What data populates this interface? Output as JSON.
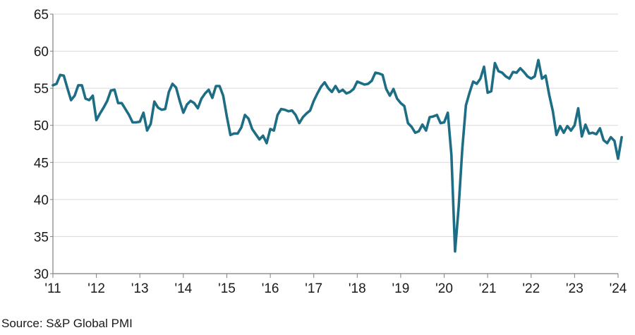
{
  "chart_data": {
    "type": "line",
    "title": "",
    "xlabel": "",
    "ylabel": "",
    "ylim": [
      30,
      65
    ],
    "xlim": [
      "2011-01",
      "2024-01"
    ],
    "y_ticks": [
      "30",
      "35",
      "40",
      "45",
      "50",
      "55",
      "60",
      "65"
    ],
    "x_ticks": [
      {
        "label": "'11",
        "date": "2011-01"
      },
      {
        "label": "'12",
        "date": "2012-01"
      },
      {
        "label": "'13",
        "date": "2013-01"
      },
      {
        "label": "'14",
        "date": "2014-01"
      },
      {
        "label": "'15",
        "date": "2015-01"
      },
      {
        "label": "'16",
        "date": "2016-01"
      },
      {
        "label": "'17",
        "date": "2017-01"
      },
      {
        "label": "'18",
        "date": "2018-01"
      },
      {
        "label": "'19",
        "date": "2019-01"
      },
      {
        "label": "'20",
        "date": "2020-01"
      },
      {
        "label": "'21",
        "date": "2021-01"
      },
      {
        "label": "'22",
        "date": "2022-01"
      },
      {
        "label": "'23",
        "date": "2023-01"
      },
      {
        "label": "'24",
        "date": "2024-01"
      }
    ],
    "grid": "horizontal",
    "series": [
      {
        "color": "#1d6e84",
        "points": [
          [
            "2011-01",
            55.4
          ],
          [
            "2011-02",
            55.6
          ],
          [
            "2011-03",
            56.8
          ],
          [
            "2011-04",
            56.7
          ],
          [
            "2011-05",
            55.0
          ],
          [
            "2011-06",
            53.4
          ],
          [
            "2011-07",
            54.0
          ],
          [
            "2011-08",
            55.4
          ],
          [
            "2011-09",
            55.4
          ],
          [
            "2011-10",
            53.6
          ],
          [
            "2011-11",
            53.4
          ],
          [
            "2011-12",
            54.0
          ],
          [
            "2012-01",
            50.7
          ],
          [
            "2012-02",
            51.6
          ],
          [
            "2012-03",
            52.4
          ],
          [
            "2012-04",
            53.3
          ],
          [
            "2012-05",
            54.7
          ],
          [
            "2012-06",
            54.8
          ],
          [
            "2012-07",
            53.0
          ],
          [
            "2012-08",
            53.0
          ],
          [
            "2012-09",
            52.2
          ],
          [
            "2012-10",
            51.4
          ],
          [
            "2012-11",
            50.4
          ],
          [
            "2012-12",
            50.4
          ],
          [
            "2013-01",
            50.5
          ],
          [
            "2013-02",
            51.7
          ],
          [
            "2013-03",
            49.3
          ],
          [
            "2013-04",
            50.2
          ],
          [
            "2013-05",
            53.2
          ],
          [
            "2013-06",
            52.4
          ],
          [
            "2013-07",
            52.1
          ],
          [
            "2013-08",
            52.2
          ],
          [
            "2013-09",
            54.5
          ],
          [
            "2013-10",
            55.6
          ],
          [
            "2013-11",
            55.1
          ],
          [
            "2013-12",
            53.3
          ],
          [
            "2014-01",
            51.7
          ],
          [
            "2014-02",
            52.8
          ],
          [
            "2014-03",
            53.3
          ],
          [
            "2014-04",
            53.0
          ],
          [
            "2014-05",
            52.3
          ],
          [
            "2014-06",
            53.6
          ],
          [
            "2014-07",
            54.3
          ],
          [
            "2014-08",
            54.8
          ],
          [
            "2014-09",
            53.7
          ],
          [
            "2014-10",
            55.3
          ],
          [
            "2014-11",
            55.3
          ],
          [
            "2014-12",
            54.0
          ],
          [
            "2015-01",
            51.2
          ],
          [
            "2015-02",
            48.7
          ],
          [
            "2015-03",
            48.9
          ],
          [
            "2015-04",
            48.9
          ],
          [
            "2015-05",
            49.7
          ],
          [
            "2015-06",
            51.4
          ],
          [
            "2015-07",
            50.9
          ],
          [
            "2015-08",
            49.5
          ],
          [
            "2015-09",
            48.8
          ],
          [
            "2015-10",
            48.1
          ],
          [
            "2015-11",
            48.6
          ],
          [
            "2015-12",
            47.6
          ],
          [
            "2016-01",
            49.5
          ],
          [
            "2016-02",
            49.3
          ],
          [
            "2016-03",
            51.4
          ],
          [
            "2016-04",
            52.2
          ],
          [
            "2016-05",
            52.1
          ],
          [
            "2016-06",
            51.9
          ],
          [
            "2016-07",
            52.0
          ],
          [
            "2016-08",
            51.4
          ],
          [
            "2016-09",
            50.3
          ],
          [
            "2016-10",
            51.1
          ],
          [
            "2016-11",
            51.6
          ],
          [
            "2016-12",
            52.0
          ],
          [
            "2017-01",
            53.3
          ],
          [
            "2017-02",
            54.3
          ],
          [
            "2017-03",
            55.2
          ],
          [
            "2017-04",
            55.8
          ],
          [
            "2017-05",
            55.0
          ],
          [
            "2017-06",
            54.5
          ],
          [
            "2017-07",
            55.3
          ],
          [
            "2017-08",
            54.5
          ],
          [
            "2017-09",
            54.8
          ],
          [
            "2017-10",
            54.3
          ],
          [
            "2017-11",
            54.5
          ],
          [
            "2017-12",
            54.9
          ],
          [
            "2018-01",
            55.9
          ],
          [
            "2018-02",
            55.7
          ],
          [
            "2018-03",
            55.5
          ],
          [
            "2018-04",
            55.6
          ],
          [
            "2018-05",
            56.0
          ],
          [
            "2018-06",
            57.1
          ],
          [
            "2018-07",
            57.0
          ],
          [
            "2018-08",
            56.8
          ],
          [
            "2018-09",
            54.9
          ],
          [
            "2018-10",
            54.0
          ],
          [
            "2018-11",
            54.9
          ],
          [
            "2018-12",
            53.6
          ],
          [
            "2019-01",
            53.0
          ],
          [
            "2019-02",
            52.6
          ],
          [
            "2019-03",
            50.3
          ],
          [
            "2019-04",
            49.8
          ],
          [
            "2019-05",
            49.0
          ],
          [
            "2019-06",
            49.2
          ],
          [
            "2019-07",
            50.1
          ],
          [
            "2019-08",
            49.3
          ],
          [
            "2019-09",
            51.1
          ],
          [
            "2019-10",
            51.2
          ],
          [
            "2019-11",
            51.4
          ],
          [
            "2019-12",
            50.3
          ],
          [
            "2020-01",
            50.4
          ],
          [
            "2020-02",
            51.7
          ],
          [
            "2020-03",
            46.0
          ],
          [
            "2020-04",
            33.0
          ],
          [
            "2020-05",
            39.0
          ],
          [
            "2020-06",
            46.8
          ],
          [
            "2020-07",
            52.7
          ],
          [
            "2020-08",
            54.4
          ],
          [
            "2020-09",
            55.9
          ],
          [
            "2020-10",
            55.6
          ],
          [
            "2020-11",
            56.3
          ],
          [
            "2020-12",
            57.9
          ],
          [
            "2021-01",
            54.4
          ],
          [
            "2021-02",
            54.6
          ],
          [
            "2021-03",
            58.4
          ],
          [
            "2021-04",
            57.3
          ],
          [
            "2021-05",
            57.1
          ],
          [
            "2021-06",
            56.6
          ],
          [
            "2021-07",
            56.3
          ],
          [
            "2021-08",
            57.2
          ],
          [
            "2021-09",
            57.1
          ],
          [
            "2021-10",
            57.7
          ],
          [
            "2021-11",
            57.2
          ],
          [
            "2021-12",
            56.6
          ],
          [
            "2022-01",
            56.3
          ],
          [
            "2022-02",
            56.6
          ],
          [
            "2022-03",
            58.8
          ],
          [
            "2022-04",
            56.3
          ],
          [
            "2022-05",
            56.7
          ],
          [
            "2022-06",
            54.1
          ],
          [
            "2022-07",
            51.9
          ],
          [
            "2022-08",
            48.7
          ],
          [
            "2022-09",
            49.9
          ],
          [
            "2022-10",
            49.0
          ],
          [
            "2022-11",
            49.9
          ],
          [
            "2022-12",
            49.3
          ],
          [
            "2023-01",
            50.0
          ],
          [
            "2023-02",
            52.3
          ],
          [
            "2023-03",
            48.5
          ],
          [
            "2023-04",
            50.1
          ],
          [
            "2023-05",
            48.9
          ],
          [
            "2023-06",
            49.0
          ],
          [
            "2023-07",
            48.8
          ],
          [
            "2023-08",
            49.6
          ],
          [
            "2023-09",
            48.0
          ],
          [
            "2023-10",
            47.6
          ],
          [
            "2023-11",
            48.4
          ],
          [
            "2023-12",
            47.9
          ],
          [
            "2024-01",
            45.5
          ],
          [
            "2024-02",
            48.4
          ]
        ]
      }
    ],
    "source": "Source: S&P Global PMI"
  }
}
